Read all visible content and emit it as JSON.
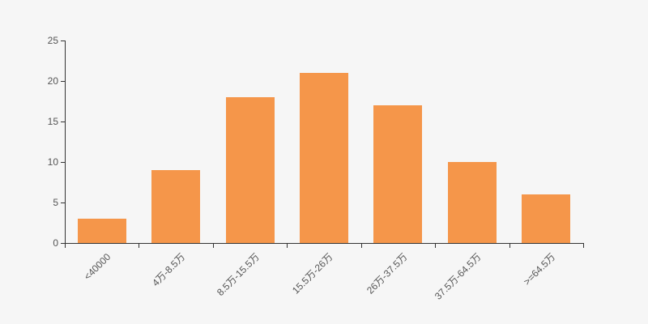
{
  "chart": {
    "background_color": "#f6f6f6",
    "bar_color": "#f5964a",
    "axis_color": "#333333",
    "label_color": "#555555"
  },
  "chart_data": {
    "type": "bar",
    "title": "",
    "xlabel": "",
    "ylabel": "",
    "categories": [
      "<40000",
      "4万-8.5万",
      "8.5万-15.5万",
      "15.5万-26万",
      "26万-37.5万",
      "37.5万-64.5万",
      ">=64.5万"
    ],
    "values": [
      3,
      9,
      18,
      21,
      17,
      10,
      6
    ],
    "ylim": [
      0,
      25
    ],
    "yticks": [
      0,
      5,
      10,
      15,
      20,
      25
    ],
    "grid": false,
    "legend": false,
    "x_label_rotation_deg": 45
  }
}
